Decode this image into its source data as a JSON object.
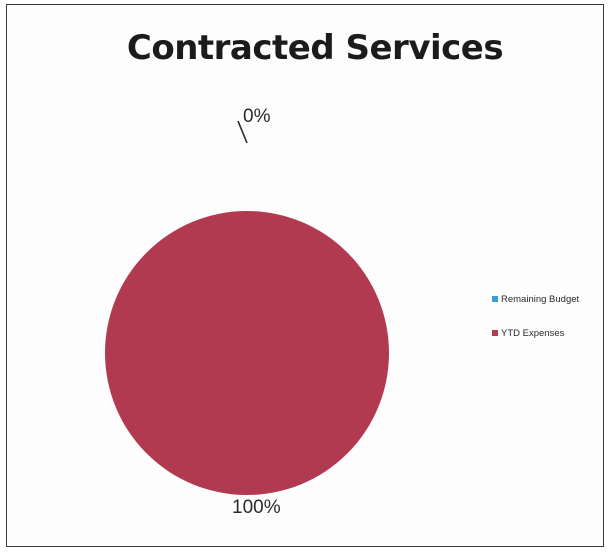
{
  "chart_data": {
    "type": "pie",
    "title": "Contracted Services",
    "categories": [
      "Remaining Budget",
      "YTD Expenses"
    ],
    "values": [
      0,
      100
    ],
    "unit": "%",
    "data_labels": [
      "0%",
      "100%"
    ],
    "legend": {
      "placement": "right",
      "entries": [
        "Remaining Budget",
        "YTD Expenses"
      ]
    },
    "colors": [
      "#3a9fd4",
      "#b23a50"
    ]
  }
}
